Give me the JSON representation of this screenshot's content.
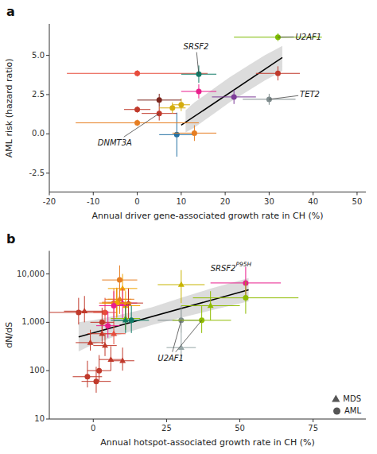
{
  "chart_data": [
    {
      "type": "scatter",
      "title": "a",
      "xlabel": "Annual driver gene-associated growth rate in CH (%)",
      "ylabel": "AML risk (hazard ratio)",
      "xlim": [
        -20,
        52
      ],
      "ylim": [
        -3.7,
        7.0
      ],
      "xticks": [
        -20,
        -10,
        0,
        10,
        20,
        30,
        40,
        50
      ],
      "yticks": [
        -2.5,
        {
          "value": 0,
          "label": "0.0"
        },
        2.5,
        {
          "value": 5.0,
          "label": "5.0"
        }
      ],
      "series": [
        {
          "marker": "circle",
          "x": [
            5,
            9,
            8,
            10,
            13,
            5,
            0,
            0,
            0,
            14,
            14,
            22,
            30,
            32,
            32
          ],
          "values": [
            1.3,
            -0.05,
            1.65,
            1.85,
            0.05,
            2.15,
            3.85,
            1.55,
            0.7,
            3.8,
            2.7,
            2.35,
            2.2,
            3.85,
            6.15
          ],
          "x_err": [
            4,
            4,
            3,
            2,
            5,
            5,
            16,
            3,
            14,
            4,
            4,
            5,
            6,
            5,
            10
          ],
          "y_err": [
            0.45,
            1.4,
            0.35,
            0.4,
            0.5,
            0.4,
            0.2,
            0.2,
            0.2,
            0.55,
            0.45,
            0.45,
            0.35,
            0.45,
            0.25
          ],
          "colors": [
            "#c0392b",
            "#2471a3",
            "#d4ac0d",
            "#d4ac0d",
            "#e67e22",
            "#7b241c",
            "#e74c3c",
            "#c0392b",
            "#e67e22",
            "#117a65",
            "#e91e8c",
            "#7d3c98",
            "#7f8c8d",
            "#c0392b",
            "#7dbb00"
          ]
        },
        {
          "type": "band",
          "color": "#d0d0d0",
          "x": [
            11,
            13,
            15,
            18,
            21,
            25,
            29,
            33
          ],
          "lo": [
            0.1,
            0.4,
            0.8,
            1.4,
            2.0,
            2.7,
            3.4,
            4.0
          ],
          "hi": [
            1.5,
            2.0,
            2.4,
            3.0,
            3.6,
            4.3,
            5.0,
            5.6
          ]
        },
        {
          "type": "line",
          "color": "#000000",
          "x": [
            10,
            33
          ],
          "values": [
            0.55,
            4.85
          ]
        }
      ],
      "annotations": [
        {
          "text": "SRSF2",
          "xy": [
            [
              14,
              3.8
            ]
          ],
          "xytext": [
            10.5,
            5.55
          ]
        },
        {
          "text": "U2AF1",
          "xy": [
            [
              32,
              6.15
            ]
          ],
          "xytext": [
            36,
            6.15
          ]
        },
        {
          "text": "TET2",
          "xy": [
            [
              30,
              2.2
            ]
          ],
          "xytext": [
            37,
            2.5
          ]
        },
        {
          "text": "DNMT3A",
          "xy": [
            [
              5,
              1.3
            ]
          ],
          "xytext": [
            -9,
            -0.6
          ]
        }
      ]
    },
    {
      "type": "scatter",
      "title": "b",
      "xlabel": "Annual hotspot-associated growth rate in CH (%)",
      "ylabel": "dN/dS",
      "log": "y",
      "xlim": [
        -15,
        93
      ],
      "ylim": [
        10,
        30000
      ],
      "xticks": [
        0,
        25,
        50,
        75
      ],
      "yticks": [
        10,
        100,
        {
          "value": 1000,
          "label": "1,000"
        },
        {
          "value": 10000,
          "label": "10,000"
        }
      ],
      "legend": "lower right",
      "series": [
        {
          "name": "MDS",
          "marker": "triangle",
          "color": "#555555",
          "x": [
            -3,
            -1,
            3,
            4,
            6,
            7,
            8,
            9,
            10,
            9,
            10,
            11,
            11,
            10,
            12,
            30,
            40,
            11,
            30
          ],
          "values": [
            1700,
            380,
            580,
            330,
            170,
            580,
            2600,
            3000,
            5000,
            3000,
            2500,
            1200,
            2200,
            160,
            2500,
            300,
            2200,
            1100,
            6000
          ],
          "x_err": [
            7,
            5,
            5,
            4,
            4,
            4,
            5,
            4,
            5,
            5,
            5,
            5,
            5,
            4,
            5,
            5,
            10,
            5,
            8
          ],
          "y_lo": [
            1000,
            260,
            350,
            200,
            100,
            350,
            1300,
            1500,
            2500,
            1500,
            1200,
            700,
            1100,
            100,
            1200,
            170,
            1100,
            600,
            2500
          ],
          "y_hi": [
            3500,
            700,
            1100,
            600,
            320,
            1100,
            5200,
            6000,
            10000,
            6000,
            5000,
            2400,
            4400,
            300,
            5000,
            600,
            4400,
            2200,
            12000
          ],
          "colors": [
            "#c0392b",
            "#c0392b",
            "#c0392b",
            "#c0392b",
            "#c0392b",
            "#e74c3c",
            "#e67e22",
            "#f0a500",
            "#f0a500",
            "#e67e22",
            "#e91e8c",
            "#8fbc00",
            "#f0a500",
            "#c0392b",
            "#c0392b",
            "#95a5a6",
            "#8fbc00",
            "#117a65",
            "#c8b400"
          ]
        },
        {
          "name": "AML",
          "marker": "circle",
          "color": "#555555",
          "x": [
            -5,
            -2,
            1,
            2,
            4,
            3,
            5,
            7,
            8,
            8,
            7,
            9,
            13,
            30,
            37,
            52,
            52
          ],
          "values": [
            1600,
            75,
            60,
            100,
            1600,
            1000,
            850,
            2500,
            2500,
            2500,
            2200,
            7500,
            1100,
            1100,
            1100,
            6500,
            3200
          ],
          "x_err": [
            10,
            5,
            5,
            4,
            4,
            4,
            4,
            5,
            5,
            5,
            5,
            6,
            6,
            8,
            10,
            12,
            18
          ],
          "y_lo": [
            900,
            45,
            35,
            60,
            900,
            550,
            480,
            1250,
            1250,
            1250,
            1100,
            3000,
            600,
            600,
            600,
            3000,
            1500
          ],
          "y_hi": [
            3200,
            160,
            120,
            210,
            3200,
            2000,
            1700,
            5000,
            5000,
            5000,
            4400,
            15000,
            2200,
            2200,
            2200,
            14000,
            7000
          ],
          "colors": [
            "#c0392b",
            "#c0392b",
            "#c0392b",
            "#c0392b",
            "#e74c3c",
            "#c0392b",
            "#e91e8c",
            "#e67e22",
            "#e67e22",
            "#f0a500",
            "#e91e8c",
            "#e67e22",
            "#117a65",
            "#7f8c8d",
            "#8fbc00",
            "#e91e8c",
            "#8fbc00"
          ]
        },
        {
          "type": "band",
          "color": "#d0d0d0",
          "x": [
            -5,
            0,
            10,
            20,
            30,
            40,
            53
          ],
          "lo": [
            250,
            350,
            580,
            880,
            1250,
            1750,
            2700
          ],
          "hi": [
            1000,
            1100,
            1460,
            2050,
            3200,
            4950,
            8200
          ]
        },
        {
          "type": "line",
          "color": "#000000",
          "x": [
            -5,
            53
          ],
          "values": [
            500,
            4700
          ]
        }
      ],
      "annotations": [
        {
          "text": "SRSF2",
          "superscript": "P95H",
          "xytext": [
            40,
            13000
          ]
        },
        {
          "text": "U2AF1",
          "xy": [
            [
              30,
              1100
            ],
            [
              37,
              1100
            ]
          ],
          "xytext": [
            22,
            180
          ]
        }
      ]
    }
  ]
}
